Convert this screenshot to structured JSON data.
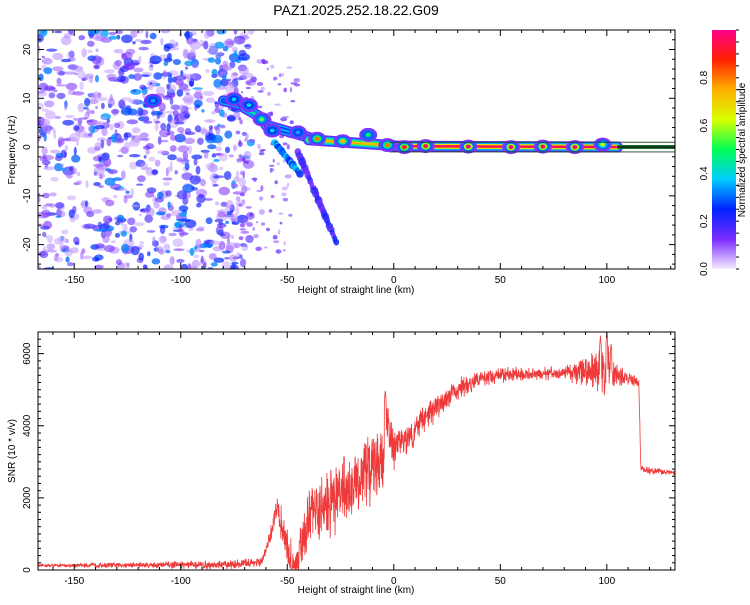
{
  "title": "PAZ1.2025.252.18.22.G09",
  "chart_data": [
    {
      "type": "heatmap",
      "title": "PAZ1.2025.252.18.22.G09",
      "xlabel": "Height of straight line (km)",
      "ylabel": "Frequency (Hz)",
      "xlim": [
        -167,
        132
      ],
      "ylim": [
        -25,
        24
      ],
      "xticks": [
        -150,
        -100,
        -50,
        0,
        50,
        100
      ],
      "yticks": [
        -20,
        -10,
        0,
        10,
        20
      ],
      "colorbar": {
        "label": "Normalized spectral amplitude",
        "range": [
          0,
          1
        ],
        "ticks": [
          0.0,
          0.2,
          0.4,
          0.6,
          0.8
        ],
        "colors": [
          "#f4eaff",
          "#7b2cff",
          "#0022ff",
          "#00ccff",
          "#00ff55",
          "#d8ff00",
          "#ffb000",
          "#ff2200",
          "#ff0088"
        ]
      },
      "ridge_segments": [
        {
          "x": [
            -80,
            -70
          ],
          "y": [
            9.5,
            8.5
          ],
          "level": 0.3
        },
        {
          "x": [
            -70,
            -60
          ],
          "y": [
            8.0,
            5.5
          ],
          "level": 0.45
        },
        {
          "x": [
            -60,
            -40
          ],
          "y": [
            4.5,
            2.0
          ],
          "level": 0.35
        },
        {
          "x": [
            -40,
            0
          ],
          "y": [
            1.5,
            0.3
          ],
          "level": 0.75
        },
        {
          "x": [
            0,
            105
          ],
          "y": [
            0.2,
            0.0
          ],
          "level": 0.95
        },
        {
          "x": [
            105,
            132
          ],
          "y": [
            0.0,
            0.0
          ],
          "level": 0.0
        }
      ],
      "ridge_blobs": [
        {
          "x": -113,
          "y": 9.5,
          "level": 0.35
        },
        {
          "x": -75,
          "y": 9.8,
          "level": 0.4
        },
        {
          "x": -68,
          "y": 8.6,
          "level": 0.4
        },
        {
          "x": -62,
          "y": 5.7,
          "level": 0.55
        },
        {
          "x": -57,
          "y": 3.4,
          "level": 0.4
        },
        {
          "x": -45,
          "y": 3.0,
          "level": 0.35
        },
        {
          "x": -36,
          "y": 1.7,
          "level": 0.8
        },
        {
          "x": -24,
          "y": 1.2,
          "level": 0.75
        },
        {
          "x": -12,
          "y": 2.5,
          "level": 0.5
        },
        {
          "x": -3,
          "y": 0.4,
          "level": 0.8
        },
        {
          "x": 5,
          "y": 0.0,
          "level": 0.9
        },
        {
          "x": 15,
          "y": 0.2,
          "level": 0.95
        },
        {
          "x": 35,
          "y": 0.1,
          "level": 0.98
        },
        {
          "x": 55,
          "y": 0.0,
          "level": 0.98
        },
        {
          "x": 70,
          "y": 0.1,
          "level": 0.95
        },
        {
          "x": 85,
          "y": 0.0,
          "level": 0.97
        },
        {
          "x": 98,
          "y": 0.5,
          "level": 0.6
        }
      ],
      "tails": [
        {
          "x": [
            -56,
            -44
          ],
          "y": [
            1.0,
            -5.5
          ],
          "level": 0.35
        },
        {
          "x": [
            -45,
            -27
          ],
          "y": [
            -1.0,
            -19.5
          ],
          "level": 0.2
        }
      ],
      "noise_region": {
        "x": [
          -167,
          -73
        ],
        "y": [
          -25,
          24
        ],
        "level": [
          0.05,
          0.35
        ]
      }
    },
    {
      "type": "line",
      "xlabel": "Height of straight line (km)",
      "ylabel": "SNR (10 * v/v)",
      "xlim": [
        -167,
        132
      ],
      "ylim": [
        0,
        6600
      ],
      "xticks": [
        -150,
        -100,
        -50,
        0,
        50,
        100
      ],
      "yticks": [
        0,
        2000,
        4000,
        6000
      ],
      "line_color": "#ee3a3a",
      "envelope": {
        "x": [
          -167,
          -120,
          -80,
          -62,
          -58,
          -55,
          -52,
          -49,
          -46,
          -43,
          -40,
          -30,
          -20,
          -10,
          -5,
          -3,
          0,
          10,
          20,
          30,
          40,
          50,
          70,
          90,
          100,
          103,
          110,
          115,
          116,
          120,
          132
        ],
        "y": [
          120,
          140,
          140,
          220,
          900,
          1800,
          1100,
          300,
          120,
          700,
          1500,
          1900,
          2300,
          2900,
          3100,
          4200,
          3300,
          3900,
          4500,
          5000,
          5300,
          5400,
          5450,
          5500,
          5500,
          5450,
          5300,
          5200,
          2800,
          2750,
          2700
        ]
      },
      "noise_amplitude": {
        "x": [
          -167,
          -60,
          -45,
          -10,
          0,
          40,
          80,
          90,
          100,
          105,
          115,
          132
        ],
        "y": [
          45,
          160,
          900,
          1300,
          600,
          250,
          200,
          500,
          900,
          350,
          150,
          60
        ]
      },
      "peaks": [
        {
          "x": -4,
          "y": 5000
        },
        {
          "x": 97,
          "y": 6500
        },
        {
          "x": 100,
          "y": 6600
        },
        {
          "x": 102,
          "y": 6300
        }
      ]
    }
  ]
}
